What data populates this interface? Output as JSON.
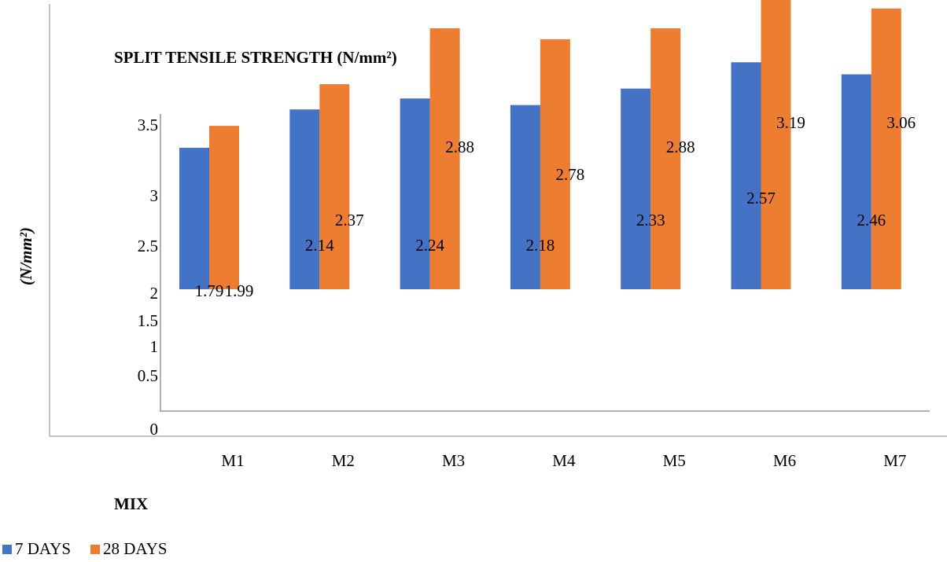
{
  "chart_data": {
    "type": "bar",
    "title": "SPLIT TENSILE STRENGTH (N/mm²)",
    "xlabel": "MIX",
    "ylabel": "(N/mm²)",
    "categories": [
      "M1",
      "M2",
      "M3",
      "M4",
      "M5",
      "M6",
      "M7"
    ],
    "series": [
      {
        "name": "7 DAYS",
        "color": "#4472C4",
        "values": [
          1.79,
          2.14,
          2.24,
          2.18,
          2.33,
          2.57,
          2.46
        ]
      },
      {
        "name": "28 DAYS",
        "color": "#ED7D31",
        "values": [
          1.99,
          2.37,
          2.88,
          2.78,
          2.88,
          3.19,
          3.06
        ]
      }
    ],
    "y_ticks": [
      "0",
      "0.5",
      "1",
      "1.5",
      "2",
      "2.5",
      "3",
      "3.5"
    ],
    "legend_position": "bottom-left",
    "grid": false
  }
}
